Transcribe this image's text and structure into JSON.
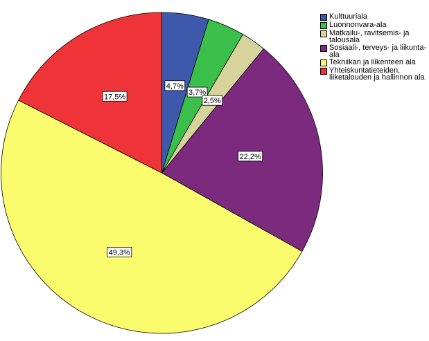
{
  "chart_data": {
    "type": "pie",
    "title": "",
    "start_angle_deg": 0,
    "direction": "clockwise",
    "slices": [
      {
        "label": "Kulttuuriala",
        "value": 4.7,
        "display": "4,7%",
        "color": "#3e58ac"
      },
      {
        "label": "Luonnonvara-ala",
        "value": 3.7,
        "display": "3,7%",
        "color": "#3bbf4b"
      },
      {
        "label": "Matkailu-, ravitsemis- ja\ntalousala",
        "value": 2.5,
        "display": "2,5%",
        "color": "#d7d39c"
      },
      {
        "label": "Sosiaali-, terveys- ja liikunta-\nala",
        "value": 22.2,
        "display": "22,2%",
        "color": "#7b2a7e"
      },
      {
        "label": "Tekniikan ja liikenteen ala",
        "value": 49.3,
        "display": "49,3%",
        "color": "#fbfb6e"
      },
      {
        "label": "Yhteiskuntatieteiden,\nliiketalouden ja hallinnon ala",
        "value": 17.5,
        "display": "17,5%",
        "color": "#ef3439"
      }
    ],
    "legend_position": "top-right"
  }
}
